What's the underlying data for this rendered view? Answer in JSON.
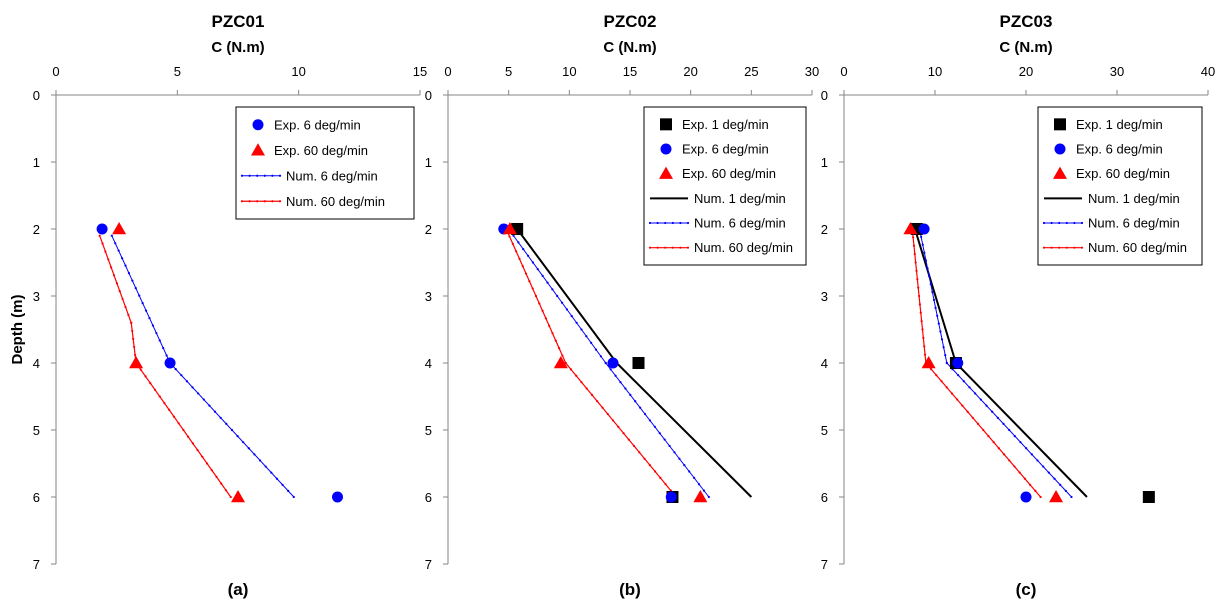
{
  "chart_data": [
    {
      "type": "line",
      "title": "PZC01",
      "xlabel": "C (N.m)",
      "ylabel": "Depth (m)",
      "panel_label": "(a)",
      "xlim": [
        0,
        15
      ],
      "x_ticks": [
        0,
        5,
        10,
        15
      ],
      "ylim": [
        0,
        7
      ],
      "y_ticks": [
        0,
        1,
        2,
        3,
        4,
        5,
        6,
        7
      ],
      "y_inverted": true,
      "x_axis_position": "top",
      "grid": false,
      "legend_position": "top-right",
      "series": [
        {
          "name": "Exp. 6 deg/min",
          "kind": "marker",
          "marker": "circle",
          "color": "#0000ff",
          "points": [
            [
              1.9,
              2
            ],
            [
              4.7,
              4
            ],
            [
              11.6,
              6
            ]
          ]
        },
        {
          "name": "Exp. 60 deg/min",
          "kind": "marker",
          "marker": "triangle",
          "color": "#ff0000",
          "points": [
            [
              2.6,
              2
            ],
            [
              3.3,
              4
            ],
            [
              7.5,
              6
            ]
          ]
        },
        {
          "name": "Num. 6 deg/min",
          "kind": "line",
          "color": "#0000ff",
          "width": 1,
          "points": [
            [
              2.3,
              2.1
            ],
            [
              4.7,
              4
            ],
            [
              9.8,
              6
            ]
          ]
        },
        {
          "name": "Num. 60 deg/min",
          "kind": "line",
          "color": "#ff0000",
          "width": 1.2,
          "points": [
            [
              1.8,
              2.1
            ],
            [
              3.1,
              3.4
            ],
            [
              3.3,
              4
            ],
            [
              7.2,
              6
            ]
          ]
        }
      ]
    },
    {
      "type": "line",
      "title": "PZC02",
      "xlabel": "C (N.m)",
      "ylabel": "",
      "panel_label": "(b)",
      "xlim": [
        0,
        30
      ],
      "x_ticks": [
        0,
        5,
        10,
        15,
        20,
        25,
        30
      ],
      "ylim": [
        0,
        7
      ],
      "y_ticks": [
        0,
        1,
        2,
        3,
        4,
        5,
        6,
        7
      ],
      "y_inverted": true,
      "x_axis_position": "top",
      "grid": false,
      "legend_position": "top-right",
      "series": [
        {
          "name": "Exp. 1 deg/min",
          "kind": "marker",
          "marker": "square",
          "color": "#000000",
          "points": [
            [
              5.7,
              2
            ],
            [
              15.7,
              4
            ],
            [
              18.5,
              6
            ]
          ]
        },
        {
          "name": "Exp. 6 deg/min",
          "kind": "marker",
          "marker": "circle",
          "color": "#0000ff",
          "points": [
            [
              4.6,
              2
            ],
            [
              13.6,
              4
            ],
            [
              18.4,
              6
            ]
          ]
        },
        {
          "name": "Exp. 60 deg/min",
          "kind": "marker",
          "marker": "triangle",
          "color": "#ff0000",
          "points": [
            [
              5.1,
              2
            ],
            [
              9.3,
              4
            ],
            [
              20.8,
              6
            ]
          ]
        },
        {
          "name": "Num. 1 deg/min",
          "kind": "line",
          "color": "#000000",
          "width": 2,
          "points": [
            [
              5.7,
              2
            ],
            [
              13.9,
              4
            ],
            [
              25.0,
              6
            ]
          ]
        },
        {
          "name": "Num. 6 deg/min",
          "kind": "line",
          "color": "#0000ff",
          "width": 1,
          "points": [
            [
              5.0,
              2
            ],
            [
              13.0,
              4
            ],
            [
              21.5,
              6
            ]
          ]
        },
        {
          "name": "Num. 60 deg/min",
          "kind": "line",
          "color": "#ff0000",
          "width": 1.2,
          "points": [
            [
              4.8,
              2
            ],
            [
              9.7,
              4
            ],
            [
              18.8,
              6
            ]
          ]
        }
      ]
    },
    {
      "type": "line",
      "title": "PZC03",
      "xlabel": "C (N.m)",
      "ylabel": "",
      "panel_label": "(c)",
      "xlim": [
        0,
        40
      ],
      "x_ticks": [
        0,
        10,
        20,
        30,
        40
      ],
      "ylim": [
        0,
        7
      ],
      "y_ticks": [
        0,
        1,
        2,
        3,
        4,
        5,
        6,
        7
      ],
      "y_inverted": true,
      "x_axis_position": "top",
      "grid": false,
      "legend_position": "top-right",
      "series": [
        {
          "name": "Exp. 1 deg/min",
          "kind": "marker",
          "marker": "square",
          "color": "#000000",
          "points": [
            [
              8.0,
              2
            ],
            [
              12.3,
              4
            ],
            [
              33.5,
              6
            ]
          ]
        },
        {
          "name": "Exp. 6 deg/min",
          "kind": "marker",
          "marker": "circle",
          "color": "#0000ff",
          "points": [
            [
              8.8,
              2
            ],
            [
              12.5,
              4
            ],
            [
              20.0,
              6
            ]
          ]
        },
        {
          "name": "Exp. 60 deg/min",
          "kind": "marker",
          "marker": "triangle",
          "color": "#ff0000",
          "points": [
            [
              7.3,
              2
            ],
            [
              9.3,
              4
            ],
            [
              23.3,
              6
            ]
          ]
        },
        {
          "name": "Num. 1 deg/min",
          "kind": "line",
          "color": "#000000",
          "width": 2,
          "points": [
            [
              7.8,
              2
            ],
            [
              12.3,
              4
            ],
            [
              26.7,
              6
            ]
          ]
        },
        {
          "name": "Num. 6 deg/min",
          "kind": "line",
          "color": "#0000ff",
          "width": 1,
          "points": [
            [
              8.3,
              2
            ],
            [
              11.3,
              4
            ],
            [
              25.0,
              6
            ]
          ]
        },
        {
          "name": "Num. 60 deg/min",
          "kind": "line",
          "color": "#ff0000",
          "width": 1.2,
          "points": [
            [
              7.5,
              2
            ],
            [
              9.0,
              4
            ],
            [
              21.6,
              6
            ]
          ]
        }
      ]
    }
  ]
}
